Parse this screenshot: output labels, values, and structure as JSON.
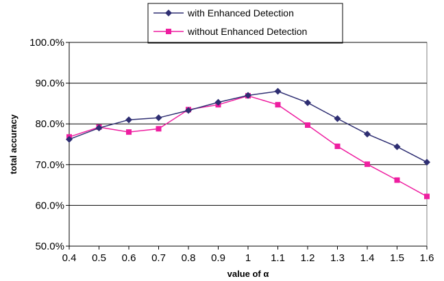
{
  "chart_data": {
    "type": "line",
    "x": [
      0.4,
      0.5,
      0.6,
      0.7,
      0.8,
      0.9,
      1,
      1.1,
      1.2,
      1.3,
      1.4,
      1.5,
      1.6
    ],
    "x_tick_labels": [
      "0.4",
      "0.5",
      "0.6",
      "0.7",
      "0.8",
      "0.9",
      "1",
      "1.1",
      "1.2",
      "1.3",
      "1.4",
      "1.5",
      "1.6"
    ],
    "series": [
      {
        "name": "with Enhanced Detection",
        "color": "#2e2e72",
        "marker": "diamond",
        "values": [
          76.2,
          79.0,
          81.0,
          81.5,
          83.3,
          85.3,
          87.0,
          88.0,
          85.2,
          81.3,
          77.5,
          74.4,
          70.6
        ]
      },
      {
        "name": "without Enhanced Detection",
        "color": "#ee1ea0",
        "marker": "square",
        "values": [
          76.8,
          79.2,
          78.0,
          78.8,
          83.5,
          84.7,
          86.9,
          84.7,
          79.7,
          74.5,
          70.1,
          66.2,
          62.2
        ]
      }
    ],
    "xlabel": "value of α",
    "ylabel": "total accuracy",
    "ylim": [
      50,
      100
    ],
    "y_ticks": [
      50,
      60,
      70,
      80,
      90,
      100
    ],
    "y_tick_labels": [
      "50.0%",
      "60.0%",
      "70.0%",
      "80.0%",
      "90.0%",
      "100.0%"
    ],
    "grid": "horizontal",
    "legend_position": "top-center"
  }
}
